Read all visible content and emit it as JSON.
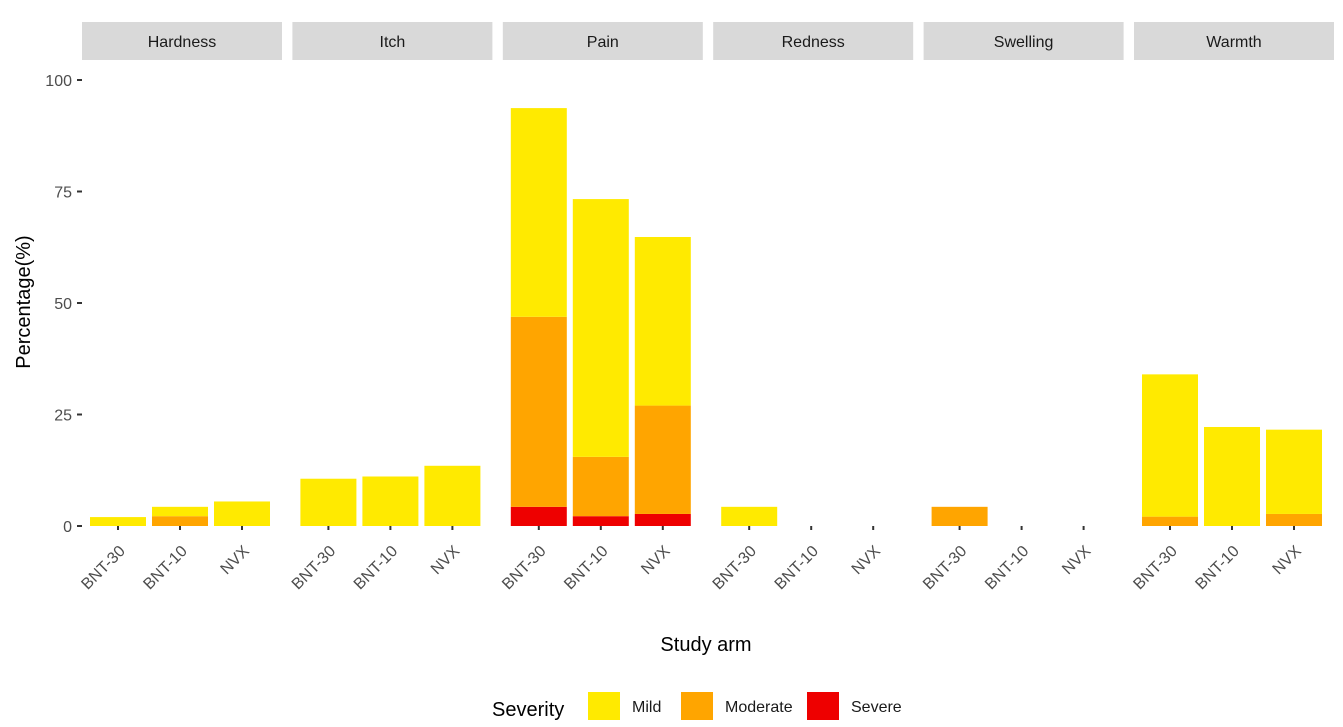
{
  "chart_data": {
    "type": "bar",
    "stacked": true,
    "faceted": true,
    "xlabel": "Study arm",
    "ylabel": "Percentage(%)",
    "ylim": [
      0,
      100
    ],
    "yticks": [
      0,
      25,
      50,
      75,
      100
    ],
    "grid": false,
    "legend": {
      "title": "Severity",
      "position": "bottom",
      "entries": [
        "Mild",
        "Moderate",
        "Severe"
      ]
    },
    "colors": {
      "Mild": "#ffea00",
      "Moderate": "#ffa500",
      "Severe": "#ee0000"
    },
    "categories": [
      "BNT-30",
      "BNT-10",
      "NVX"
    ],
    "facets": [
      {
        "name": "Hardness",
        "series": [
          {
            "name": "Mild",
            "values": [
              2.0,
              2.1,
              5.5
            ]
          },
          {
            "name": "Moderate",
            "values": [
              0,
              2.2,
              0
            ]
          },
          {
            "name": "Severe",
            "values": [
              0,
              0,
              0
            ]
          }
        ]
      },
      {
        "name": "Itch",
        "series": [
          {
            "name": "Mild",
            "values": [
              10.6,
              11.1,
              13.5
            ]
          },
          {
            "name": "Moderate",
            "values": [
              0,
              0,
              0
            ]
          },
          {
            "name": "Severe",
            "values": [
              0,
              0,
              0
            ]
          }
        ]
      },
      {
        "name": "Pain",
        "series": [
          {
            "name": "Mild",
            "values": [
              46.8,
              57.8,
              37.8
            ]
          },
          {
            "name": "Moderate",
            "values": [
              42.6,
              13.3,
              24.3
            ]
          },
          {
            "name": "Severe",
            "values": [
              4.3,
              2.2,
              2.7
            ]
          }
        ]
      },
      {
        "name": "Redness",
        "series": [
          {
            "name": "Mild",
            "values": [
              4.3,
              0,
              0
            ]
          },
          {
            "name": "Moderate",
            "values": [
              0,
              0,
              0
            ]
          },
          {
            "name": "Severe",
            "values": [
              0,
              0,
              0
            ]
          }
        ]
      },
      {
        "name": "Swelling",
        "series": [
          {
            "name": "Mild",
            "values": [
              0,
              0,
              0
            ]
          },
          {
            "name": "Moderate",
            "values": [
              4.3,
              0,
              0
            ]
          },
          {
            "name": "Severe",
            "values": [
              0,
              0,
              0
            ]
          }
        ]
      },
      {
        "name": "Warmth",
        "series": [
          {
            "name": "Mild",
            "values": [
              31.9,
              22.2,
              18.9
            ]
          },
          {
            "name": "Moderate",
            "values": [
              2.1,
              0,
              2.7
            ]
          },
          {
            "name": "Severe",
            "values": [
              0,
              0,
              0
            ]
          }
        ]
      }
    ]
  }
}
